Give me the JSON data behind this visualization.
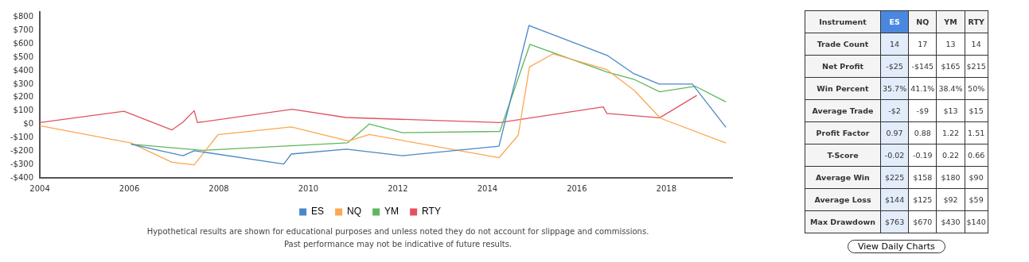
{
  "chart_data": [
    {
      "type": "line",
      "legend": "bottom",
      "grid": false,
      "marker": "none",
      "line_style": "solid",
      "xlim": [
        2004,
        2019.47
      ],
      "xticks": [
        2004,
        2006,
        2008,
        2010,
        2012,
        2014,
        2016,
        2018
      ],
      "ylim": [
        -400,
        840
      ],
      "yticks": [
        {
          "value": -400,
          "label": "-$400"
        },
        {
          "value": -300,
          "label": "-$300"
        },
        {
          "value": -200,
          "label": "-$200"
        },
        {
          "value": -100,
          "label": "-$100"
        },
        {
          "value": 0,
          "label": "$0"
        },
        {
          "value": 100,
          "label": "$100"
        },
        {
          "value": 200,
          "label": "$200"
        },
        {
          "value": 300,
          "label": "$300"
        },
        {
          "value": 400,
          "label": "$400"
        },
        {
          "value": 500,
          "label": "$500"
        },
        {
          "value": 600,
          "label": "$600"
        },
        {
          "value": 700,
          "label": "$700"
        },
        {
          "value": 800,
          "label": "$800"
        }
      ],
      "series": [
        {
          "name": "ES",
          "color": "#4a88c7",
          "x": [
            2006.04,
            2007.2,
            2007.45,
            2009.45,
            2009.62,
            2010.85,
            2012.1,
            2014.26,
            2014.93,
            2016.68,
            2017.27,
            2017.84,
            2018.58,
            2019.33
          ],
          "values": [
            -148,
            -235,
            -197,
            -297,
            -222,
            -186,
            -235,
            -163,
            739,
            515,
            379,
            301,
            301,
            -23
          ]
        },
        {
          "name": "NQ",
          "color": "#fba750",
          "x": [
            2004.0,
            2006.04,
            2006.95,
            2007.45,
            2007.98,
            2009.62,
            2010.9,
            2011.36,
            2014.26,
            2014.69,
            2014.94,
            2015.47,
            2016.67,
            2017.28,
            2017.87,
            2019.33
          ],
          "values": [
            -10,
            -140,
            -284,
            -303,
            -78,
            -19,
            -125,
            -76,
            -250,
            -81,
            428,
            527,
            409,
            254,
            45,
            -140
          ]
        },
        {
          "name": "YM",
          "color": "#5cb85c",
          "x": [
            2006.04,
            2007.63,
            2010.88,
            2011.36,
            2012.1,
            2014.28,
            2014.95,
            2016.68,
            2017.27,
            2017.85,
            2018.65,
            2019.33
          ],
          "values": [
            -148,
            -195,
            -138,
            2,
            -63,
            -53,
            597,
            390,
            337,
            243,
            284,
            167
          ]
        },
        {
          "name": "RTY",
          "color": "#e0535e",
          "x": [
            2004.0,
            2005.88,
            2006.95,
            2007.2,
            2007.45,
            2007.52,
            2009.64,
            2010.84,
            2014.28,
            2016.59,
            2016.67,
            2017.85,
            2018.68
          ],
          "values": [
            13,
            98,
            -42,
            17,
            102,
            13,
            112,
            51,
            13,
            130,
            81,
            49,
            216
          ]
        }
      ],
      "annotations": [
        "Hypothetical results are shown for educational purposes and unless noted they do not account for slippage and commissions.",
        "Past performance may not be indicative of future results."
      ]
    },
    {
      "type": "other",
      "ylabel": "Instrument",
      "categories": [
        "ES",
        "NQ",
        "YM",
        "RTY"
      ],
      "y_categories": [
        "Trade Count",
        "Net Profit",
        "Win Percent",
        "Average Trade",
        "Profit Factor",
        "T-Score",
        "Average Win",
        "Average Loss",
        "Max Drawdown"
      ],
      "cell_labels": [
        [
          "14",
          "17",
          "13",
          "14"
        ],
        [
          "-$25",
          "-$145",
          "$165",
          "$215"
        ],
        [
          "35.7%",
          "41.1%",
          "38.4%",
          "50%"
        ],
        [
          "-$2",
          "-$9",
          "$13",
          "$15"
        ],
        [
          "0.97",
          "0.88",
          "1.22",
          "1.51"
        ],
        [
          "-0.02",
          "-0.19",
          "0.22",
          "0.66"
        ],
        [
          "$225",
          "$158",
          "$180",
          "$90"
        ],
        [
          "$144",
          "$125",
          "$92",
          "$59"
        ],
        [
          "$763",
          "$670",
          "$430",
          "$140"
        ]
      ],
      "annotations": [
        "View Daily Charts"
      ]
    }
  ]
}
